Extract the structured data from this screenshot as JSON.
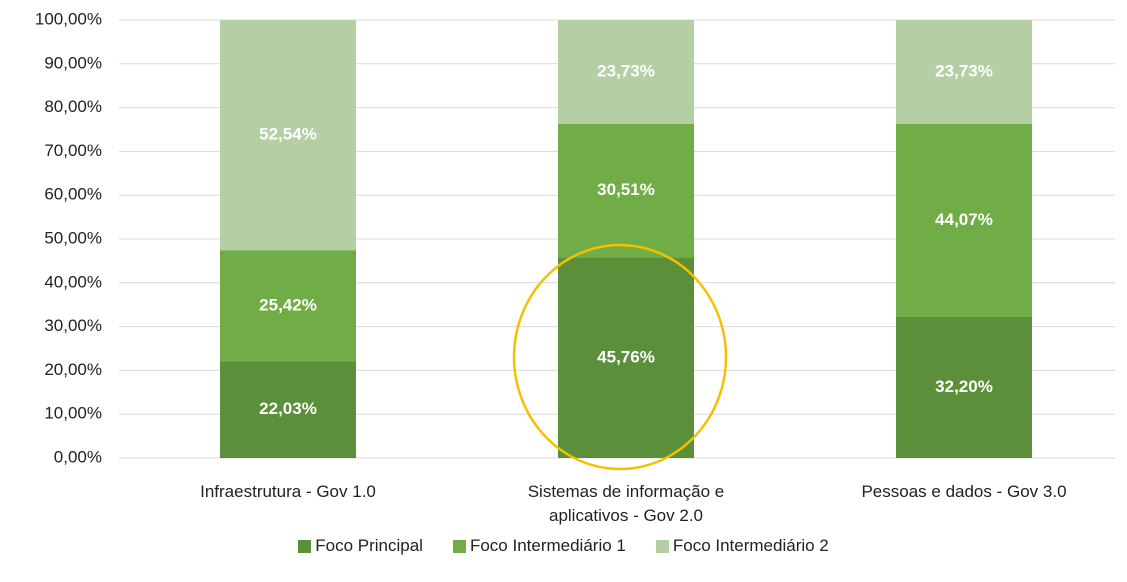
{
  "chart_data": {
    "type": "stacked_bar",
    "categories": [
      "Infraestrutura - Gov 1.0",
      "Sistemas de informação e aplicativos - Gov 2.0",
      "Pessoas e dados - Gov 3.0"
    ],
    "series": [
      {
        "name": "Foco Principal",
        "color": "#5b8f3a",
        "values": [
          22.03,
          45.76,
          32.2
        ],
        "value_labels": [
          "22,03%",
          "45,76%",
          "32,20%"
        ]
      },
      {
        "name": "Foco Intermediário 1",
        "color": "#70ad47",
        "values": [
          25.42,
          30.51,
          44.07
        ],
        "value_labels": [
          "25,42%",
          "30,51%",
          "44,07%"
        ]
      },
      {
        "name": "Foco Intermediário 2",
        "color": "#b5cfa5",
        "values": [
          52.54,
          23.73,
          23.73
        ],
        "value_labels": [
          "52,54%",
          "23,73%",
          "23,73%"
        ]
      }
    ],
    "ylim": [
      0,
      100
    ],
    "yticks": [
      {
        "value": 0,
        "label": "0,00%"
      },
      {
        "value": 10,
        "label": "10,00%"
      },
      {
        "value": 20,
        "label": "20,00%"
      },
      {
        "value": 30,
        "label": "30,00%"
      },
      {
        "value": 40,
        "label": "40,00%"
      },
      {
        "value": 50,
        "label": "50,00%"
      },
      {
        "value": 60,
        "label": "60,00%"
      },
      {
        "value": 70,
        "label": "70,00%"
      },
      {
        "value": 80,
        "label": "80,00%"
      },
      {
        "value": 90,
        "label": "90,00%"
      },
      {
        "value": 100,
        "label": "100,00%"
      }
    ],
    "grid": true
  }
}
